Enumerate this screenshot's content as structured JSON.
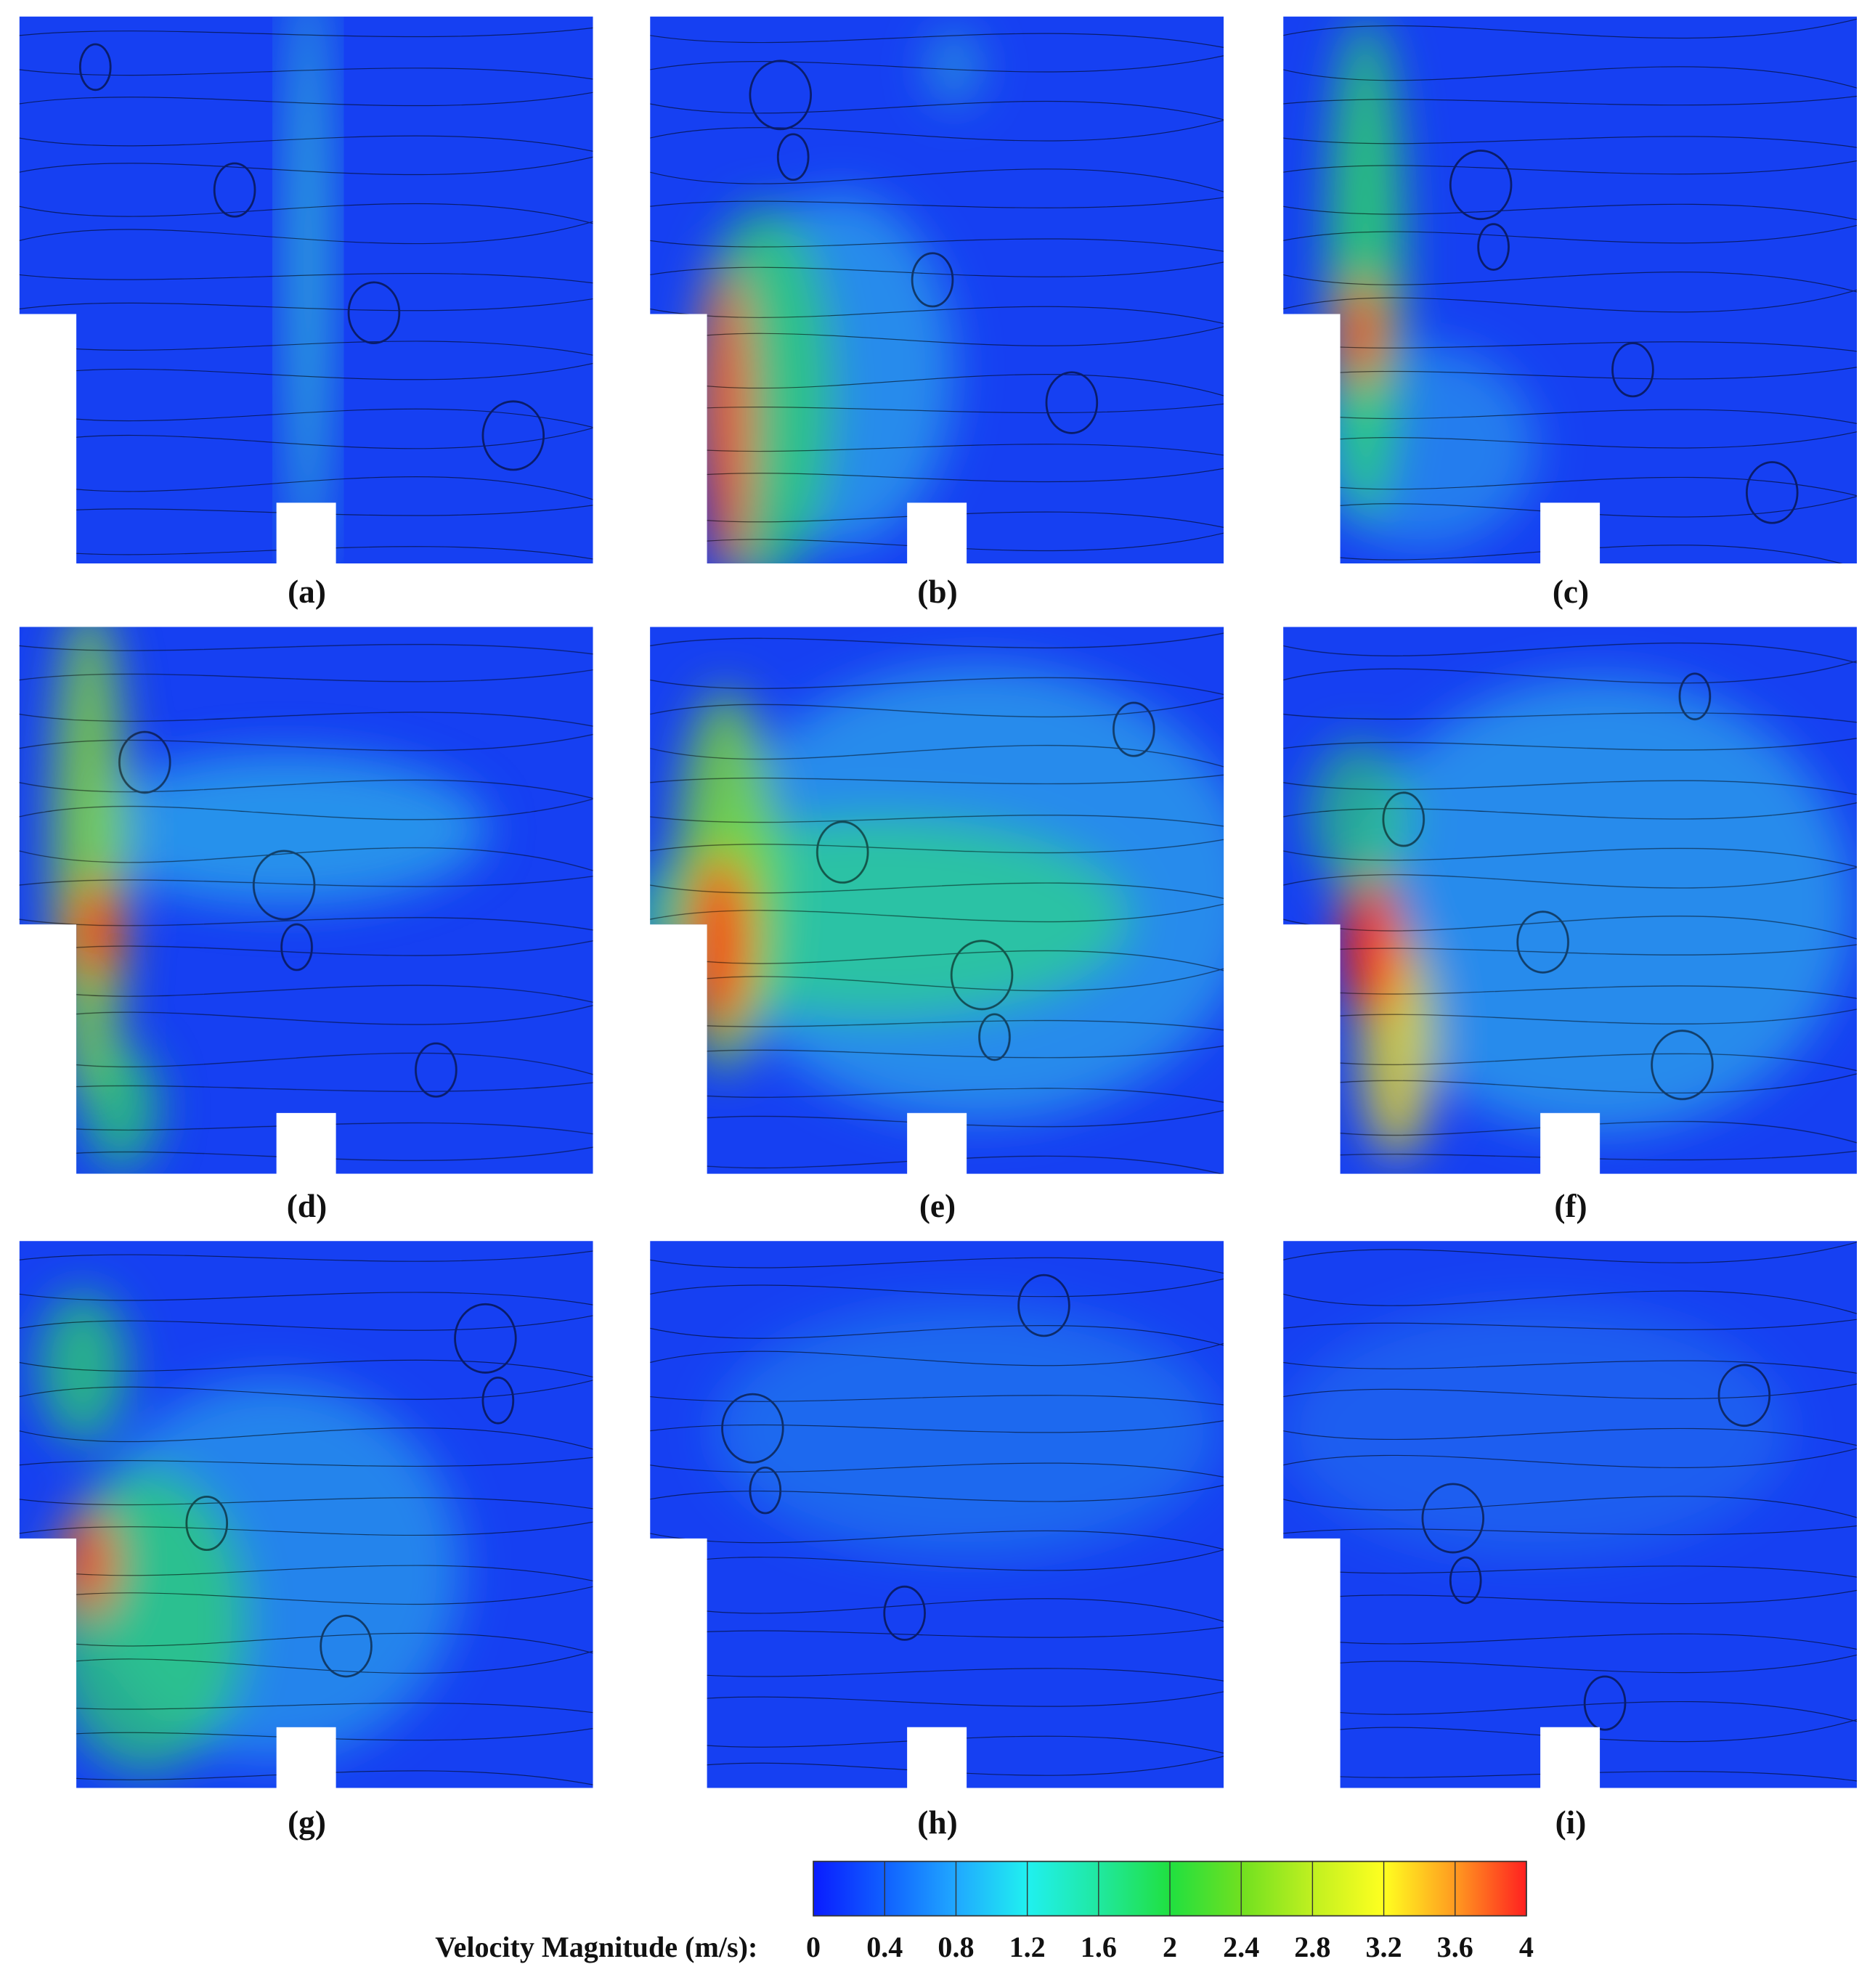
{
  "panels": [
    {
      "label": "(a)"
    },
    {
      "label": "(b)"
    },
    {
      "label": "(c)"
    },
    {
      "label": "(d)"
    },
    {
      "label": "(e)"
    },
    {
      "label": "(f)"
    },
    {
      "label": "(g)"
    },
    {
      "label": "(h)"
    },
    {
      "label": "(i)"
    }
  ],
  "colorbar": {
    "title": "Velocity Magnitude (m/s):",
    "lim": [
      0,
      4
    ],
    "ticks": [
      0,
      0.4,
      0.8,
      1.2,
      1.6,
      2,
      2.4,
      2.8,
      3.2,
      3.6,
      4
    ],
    "colors": [
      "#0a1cff",
      "#1060ff",
      "#20a8ff",
      "#20f0f0",
      "#20e8a0",
      "#20e040",
      "#70e020",
      "#c0f020",
      "#ffff20",
      "#ff9a20",
      "#ff2020"
    ]
  }
}
